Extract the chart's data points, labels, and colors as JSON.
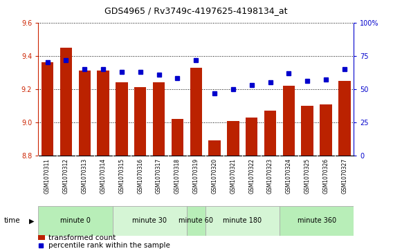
{
  "title": "GDS4965 / Rv3749c-4197625-4198134_at",
  "samples": [
    "GSM1070311",
    "GSM1070312",
    "GSM1070313",
    "GSM1070314",
    "GSM1070315",
    "GSM1070316",
    "GSM1070317",
    "GSM1070318",
    "GSM1070319",
    "GSM1070320",
    "GSM1070321",
    "GSM1070322",
    "GSM1070323",
    "GSM1070324",
    "GSM1070325",
    "GSM1070326",
    "GSM1070327"
  ],
  "bar_values": [
    9.36,
    9.45,
    9.31,
    9.31,
    9.24,
    9.21,
    9.24,
    9.02,
    9.33,
    8.89,
    9.01,
    9.03,
    9.07,
    9.22,
    9.1,
    9.11,
    9.25
  ],
  "percentile_values": [
    70,
    72,
    65,
    65,
    63,
    63,
    61,
    58,
    72,
    47,
    50,
    53,
    55,
    62,
    56,
    57,
    65
  ],
  "ylim_left": [
    8.8,
    9.6
  ],
  "ylim_right": [
    0,
    100
  ],
  "yticks_left": [
    8.8,
    9.0,
    9.2,
    9.4,
    9.6
  ],
  "yticks_right": [
    0,
    25,
    50,
    75,
    100
  ],
  "ytick_right_labels": [
    "0",
    "25",
    "50",
    "75",
    "100%"
  ],
  "bar_color": "#bb2200",
  "dot_color": "#0000cc",
  "groups": [
    {
      "label": "minute 0",
      "indices": [
        0,
        1,
        2,
        3
      ],
      "color": "#cceecc"
    },
    {
      "label": "minute 30",
      "indices": [
        4,
        5,
        6,
        7
      ],
      "color": "#ddf5dd"
    },
    {
      "label": "minute 60",
      "indices": [
        8
      ],
      "color": "#cceecc"
    },
    {
      "label": "minute 180",
      "indices": [
        9,
        10,
        11,
        12
      ],
      "color": "#ddf5dd"
    },
    {
      "label": "minute 360",
      "indices": [
        13,
        14,
        15,
        16
      ],
      "color": "#cceecc"
    }
  ],
  "legend_bar": "transformed count",
  "legend_dot": "percentile rank within the sample",
  "bar_bottom": 8.8,
  "sample_bg_color": "#cccccc",
  "plot_bg_color": "#ffffff",
  "left_color": "#cc2200",
  "right_color": "#0000cc"
}
